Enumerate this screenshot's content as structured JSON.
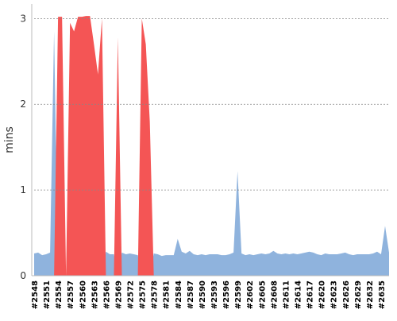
{
  "chart_data": {
    "type": "area",
    "y_label": "mins",
    "categories": [
      "#2548",
      null,
      null,
      "#2551",
      null,
      null,
      "#2554",
      null,
      null,
      "#2557",
      null,
      null,
      "#2560",
      null,
      null,
      "#2563",
      null,
      null,
      "#2566",
      null,
      null,
      "#2569",
      null,
      null,
      "#2572",
      null,
      null,
      "#2575",
      null,
      null,
      "#2578",
      null,
      null,
      "#2581",
      null,
      null,
      "#2584",
      null,
      null,
      "#2587",
      null,
      null,
      "#2590",
      null,
      null,
      "#2593",
      null,
      null,
      "#2596",
      null,
      null,
      "#2599",
      null,
      null,
      "#2602",
      null,
      null,
      "#2605",
      null,
      null,
      "#2608",
      null,
      null,
      "#2611",
      null,
      null,
      "#2614",
      null,
      null,
      "#2617",
      null,
      null,
      "#2620",
      null,
      null,
      "#2623",
      null,
      null,
      "#2626",
      null,
      null,
      "#2629",
      null,
      null,
      "#2632",
      null,
      null,
      "#2635",
      null,
      null
    ],
    "series": [
      {
        "color": "#8fb3dd",
        "values": [
          0.26,
          0.27,
          0.24,
          0.25,
          0.27,
          2.85,
          0,
          0,
          0,
          0,
          0,
          0,
          0,
          0,
          0,
          0,
          0,
          0,
          0.28,
          0.25,
          0.25,
          0,
          0.27,
          0.25,
          0.26,
          0.25,
          0.24,
          0,
          0,
          0,
          0.26,
          0.25,
          0.23,
          0.24,
          0.24,
          0.24,
          0.43,
          0.28,
          0.26,
          0.29,
          0.25,
          0.24,
          0.25,
          0.24,
          0.25,
          0.25,
          0.25,
          0.24,
          0.24,
          0.25,
          0.27,
          1.22,
          0.26,
          0.24,
          0.25,
          0.24,
          0.25,
          0.26,
          0.25,
          0.26,
          0.29,
          0.26,
          0.25,
          0.26,
          0.25,
          0.26,
          0.25,
          0.26,
          0.27,
          0.28,
          0.27,
          0.25,
          0.24,
          0.26,
          0.25,
          0.25,
          0.25,
          0.26,
          0.27,
          0.25,
          0.24,
          0.25,
          0.25,
          0.25,
          0.25,
          0.26,
          0.28,
          0.25,
          0.58,
          0.27
        ]
      },
      {
        "color": "#f45555",
        "values": [
          0,
          0,
          0,
          0,
          0,
          0,
          3.02,
          3.02,
          0,
          2.95,
          2.85,
          3.02,
          3.02,
          3.03,
          3.03,
          2.7,
          2.35,
          3.0,
          0,
          0,
          0,
          2.78,
          0,
          0,
          0,
          0,
          0,
          3.0,
          2.7,
          1.8,
          0,
          0,
          0,
          0,
          0,
          0,
          0,
          0,
          0,
          0,
          0,
          0,
          0,
          0,
          0,
          0,
          0,
          0,
          0,
          0,
          0,
          0,
          0,
          0,
          0,
          0,
          0,
          0,
          0,
          0,
          0,
          0,
          0,
          0,
          0,
          0,
          0,
          0,
          0,
          0,
          0,
          0,
          0,
          0,
          0,
          0,
          0,
          0,
          0,
          0,
          0,
          0,
          0,
          0,
          0,
          0,
          0,
          0,
          0,
          0
        ]
      }
    ],
    "ylim": [
      0,
      3.17
    ],
    "yticks": [
      0,
      1,
      2,
      3
    ],
    "grid": true
  }
}
